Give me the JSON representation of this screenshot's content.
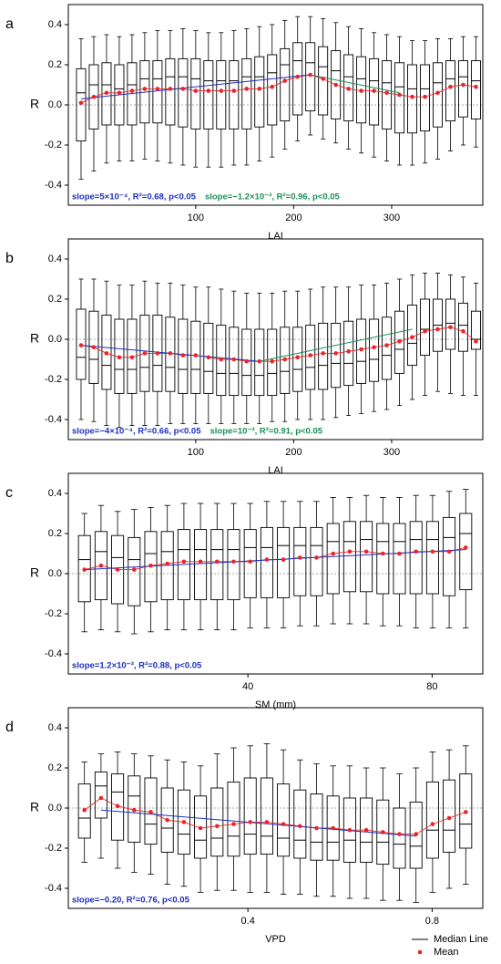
{
  "chart_data": [
    {
      "type": "box",
      "panel": "a",
      "xlabel": "LAI",
      "ylabel": "R",
      "xlim": [
        -30,
        393
      ],
      "ylim": [
        -0.5,
        0.5
      ],
      "xticks": [
        100,
        200,
        300
      ],
      "yticks": [
        -0.4,
        -0.2,
        {
          "value": 0,
          "label": "0.0"
        },
        0.2,
        0.4
      ],
      "zero_line": true,
      "box_color": "#000000",
      "mean_color": "#e8262a",
      "x": [
        -17,
        -4,
        9,
        22,
        35,
        48,
        61,
        74,
        87,
        100,
        113,
        126,
        139,
        152,
        165,
        178,
        191,
        204,
        217,
        230,
        243,
        256,
        269,
        282,
        295,
        308,
        321,
        334,
        347,
        360,
        373,
        386
      ],
      "whislo": [
        -0.37,
        -0.33,
        -0.29,
        -0.28,
        -0.28,
        -0.27,
        -0.28,
        -0.29,
        -0.3,
        -0.31,
        -0.31,
        -0.31,
        -0.3,
        -0.3,
        -0.28,
        -0.26,
        -0.22,
        -0.18,
        -0.15,
        -0.17,
        -0.19,
        -0.22,
        -0.24,
        -0.26,
        -0.28,
        -0.3,
        -0.3,
        -0.29,
        -0.27,
        -0.23,
        -0.2,
        -0.21
      ],
      "q1": [
        -0.18,
        -0.12,
        -0.1,
        -0.1,
        -0.1,
        -0.09,
        -0.09,
        -0.1,
        -0.11,
        -0.12,
        -0.12,
        -0.12,
        -0.12,
        -0.12,
        -0.11,
        -0.1,
        -0.08,
        -0.05,
        -0.03,
        -0.05,
        -0.07,
        -0.08,
        -0.09,
        -0.1,
        -0.12,
        -0.14,
        -0.14,
        -0.13,
        -0.11,
        -0.08,
        -0.06,
        -0.07
      ],
      "med": [
        0.06,
        0.1,
        0.1,
        0.08,
        0.1,
        0.13,
        0.13,
        0.14,
        0.14,
        0.13,
        0.12,
        0.12,
        0.12,
        0.14,
        0.14,
        0.16,
        0.2,
        0.22,
        0.21,
        0.19,
        0.17,
        0.14,
        0.13,
        0.12,
        0.11,
        0.09,
        0.08,
        0.08,
        0.11,
        0.13,
        0.14,
        0.12
      ],
      "q3": [
        0.18,
        0.2,
        0.21,
        0.2,
        0.21,
        0.22,
        0.22,
        0.23,
        0.23,
        0.23,
        0.22,
        0.22,
        0.22,
        0.23,
        0.24,
        0.25,
        0.28,
        0.31,
        0.31,
        0.29,
        0.27,
        0.25,
        0.24,
        0.23,
        0.22,
        0.21,
        0.2,
        0.2,
        0.21,
        0.22,
        0.22,
        0.22
      ],
      "whishi": [
        0.33,
        0.34,
        0.35,
        0.34,
        0.35,
        0.36,
        0.37,
        0.37,
        0.38,
        0.37,
        0.36,
        0.36,
        0.37,
        0.38,
        0.39,
        0.4,
        0.42,
        0.44,
        0.44,
        0.43,
        0.41,
        0.39,
        0.38,
        0.36,
        0.35,
        0.34,
        0.32,
        0.32,
        0.33,
        0.33,
        0.34,
        0.34
      ],
      "mean": [
        0.01,
        0.04,
        0.06,
        0.06,
        0.07,
        0.08,
        0.08,
        0.08,
        0.08,
        0.07,
        0.07,
        0.07,
        0.07,
        0.08,
        0.08,
        0.09,
        0.12,
        0.14,
        0.15,
        0.13,
        0.1,
        0.08,
        0.07,
        0.07,
        0.06,
        0.05,
        0.04,
        0.04,
        0.06,
        0.09,
        0.1,
        0.09
      ],
      "trends": [
        {
          "color": "#1f2fbf",
          "x": [
            -17,
            217
          ],
          "values": [
            0.03,
            0.15
          ],
          "label": "slope=5×10⁻⁴, R²=0.68, p<0.05"
        },
        {
          "color": "#1a8f5a",
          "x": [
            217,
            308
          ],
          "values": [
            0.15,
            0.06
          ],
          "label": "slope=−1.2×10⁻³, R²=0.96, p<0.05"
        }
      ]
    },
    {
      "type": "box",
      "panel": "b",
      "xlabel": "LAI",
      "ylabel": "R",
      "xlim": [
        -30,
        393
      ],
      "ylim": [
        -0.5,
        0.5
      ],
      "xticks": [
        100,
        200,
        300
      ],
      "yticks": [
        -0.4,
        -0.2,
        {
          "value": 0,
          "label": "0.0"
        },
        0.2,
        0.4
      ],
      "zero_line": true,
      "box_color": "#000000",
      "mean_color": "#e8262a",
      "x": [
        -17,
        -4,
        9,
        22,
        35,
        48,
        61,
        74,
        87,
        100,
        113,
        126,
        139,
        152,
        165,
        178,
        191,
        204,
        217,
        230,
        243,
        256,
        269,
        282,
        295,
        308,
        321,
        334,
        347,
        360,
        373,
        386
      ],
      "whislo": [
        -0.4,
        -0.41,
        -0.43,
        -0.44,
        -0.43,
        -0.43,
        -0.43,
        -0.42,
        -0.42,
        -0.42,
        -0.42,
        -0.42,
        -0.42,
        -0.42,
        -0.42,
        -0.41,
        -0.41,
        -0.4,
        -0.4,
        -0.4,
        -0.39,
        -0.38,
        -0.37,
        -0.36,
        -0.35,
        -0.33,
        -0.3,
        -0.28,
        -0.26,
        -0.27,
        -0.28,
        -0.28
      ],
      "q1": [
        -0.2,
        -0.22,
        -0.25,
        -0.27,
        -0.27,
        -0.26,
        -0.26,
        -0.26,
        -0.27,
        -0.27,
        -0.27,
        -0.28,
        -0.28,
        -0.28,
        -0.28,
        -0.28,
        -0.27,
        -0.26,
        -0.25,
        -0.25,
        -0.24,
        -0.23,
        -0.22,
        -0.21,
        -0.2,
        -0.17,
        -0.13,
        -0.08,
        -0.06,
        -0.05,
        -0.06,
        -0.05
      ],
      "med": [
        -0.09,
        -0.1,
        -0.13,
        -0.15,
        -0.15,
        -0.14,
        -0.13,
        -0.14,
        -0.15,
        -0.15,
        -0.16,
        -0.17,
        -0.17,
        -0.18,
        -0.18,
        -0.17,
        -0.16,
        -0.15,
        -0.14,
        -0.13,
        -0.12,
        -0.12,
        -0.11,
        -0.1,
        -0.08,
        -0.05,
        -0.02,
        0.05,
        0.07,
        0.08,
        0.07,
        0.0
      ],
      "q3": [
        0.15,
        0.14,
        0.12,
        0.1,
        0.1,
        0.12,
        0.12,
        0.11,
        0.1,
        0.09,
        0.08,
        0.07,
        0.06,
        0.05,
        0.05,
        0.05,
        0.06,
        0.06,
        0.07,
        0.08,
        0.08,
        0.09,
        0.1,
        0.1,
        0.11,
        0.14,
        0.17,
        0.2,
        0.2,
        0.2,
        0.18,
        0.14
      ],
      "whishi": [
        0.3,
        0.3,
        0.29,
        0.27,
        0.27,
        0.29,
        0.28,
        0.28,
        0.27,
        0.26,
        0.26,
        0.25,
        0.24,
        0.23,
        0.23,
        0.23,
        0.24,
        0.24,
        0.25,
        0.26,
        0.26,
        0.26,
        0.27,
        0.27,
        0.28,
        0.3,
        0.32,
        0.33,
        0.33,
        0.32,
        0.31,
        0.28
      ],
      "mean": [
        -0.03,
        -0.04,
        -0.07,
        -0.09,
        -0.09,
        -0.07,
        -0.07,
        -0.07,
        -0.08,
        -0.08,
        -0.09,
        -0.1,
        -0.1,
        -0.11,
        -0.11,
        -0.11,
        -0.1,
        -0.09,
        -0.08,
        -0.07,
        -0.07,
        -0.06,
        -0.05,
        -0.04,
        -0.03,
        -0.01,
        0.01,
        0.04,
        0.05,
        0.06,
        0.04,
        -0.01
      ],
      "trends": [
        {
          "color": "#1f2fbf",
          "x": [
            -17,
            165
          ],
          "values": [
            -0.03,
            -0.11
          ],
          "label": "slope=−4×10⁻⁴, R²=0.66, p<0.05"
        },
        {
          "color": "#1a8f5a",
          "x": [
            165,
            321
          ],
          "values": [
            -0.11,
            0.05
          ],
          "label": "slope=10⁻³, R²=0.91, p<0.05"
        }
      ]
    },
    {
      "type": "box",
      "panel": "c",
      "xlabel": "SM (mm)",
      "ylabel": "R",
      "xlim": [
        1,
        91
      ],
      "ylim": [
        -0.5,
        0.5
      ],
      "xticks": [
        40,
        80
      ],
      "yticks": [
        -0.4,
        -0.2,
        {
          "value": 0,
          "label": "0.0"
        },
        0.2,
        0.4
      ],
      "zero_line": true,
      "box_color": "#000000",
      "mean_color": "#e8262a",
      "x": [
        4.5,
        8.1,
        11.7,
        15.3,
        18.9,
        22.5,
        26.1,
        29.7,
        33.3,
        36.9,
        40.5,
        44.1,
        47.7,
        51.3,
        54.9,
        58.5,
        62.1,
        65.7,
        69.3,
        72.9,
        76.5,
        80.1,
        83.7,
        87.3
      ],
      "whislo": [
        -0.29,
        -0.28,
        -0.29,
        -0.3,
        -0.29,
        -0.28,
        -0.28,
        -0.28,
        -0.28,
        -0.28,
        -0.27,
        -0.27,
        -0.27,
        -0.26,
        -0.26,
        -0.25,
        -0.25,
        -0.25,
        -0.26,
        -0.26,
        -0.27,
        -0.27,
        -0.27,
        -0.27
      ],
      "q1": [
        -0.14,
        -0.13,
        -0.15,
        -0.16,
        -0.14,
        -0.13,
        -0.13,
        -0.13,
        -0.13,
        -0.13,
        -0.12,
        -0.12,
        -0.12,
        -0.11,
        -0.11,
        -0.1,
        -0.09,
        -0.09,
        -0.1,
        -0.1,
        -0.1,
        -0.1,
        -0.11,
        -0.08
      ],
      "med": [
        0.07,
        0.11,
        0.08,
        0.07,
        0.1,
        0.11,
        0.12,
        0.12,
        0.12,
        0.12,
        0.13,
        0.13,
        0.14,
        0.14,
        0.14,
        0.16,
        0.16,
        0.17,
        0.16,
        0.16,
        0.17,
        0.17,
        0.18,
        0.2
      ],
      "q3": [
        0.19,
        0.21,
        0.19,
        0.18,
        0.21,
        0.21,
        0.22,
        0.22,
        0.22,
        0.22,
        0.22,
        0.23,
        0.23,
        0.23,
        0.23,
        0.25,
        0.26,
        0.26,
        0.25,
        0.25,
        0.26,
        0.26,
        0.28,
        0.3
      ],
      "whishi": [
        0.3,
        0.34,
        0.31,
        0.32,
        0.33,
        0.34,
        0.35,
        0.35,
        0.35,
        0.35,
        0.35,
        0.36,
        0.36,
        0.36,
        0.36,
        0.38,
        0.38,
        0.39,
        0.38,
        0.38,
        0.39,
        0.39,
        0.41,
        0.42
      ],
      "mean": [
        0.02,
        0.04,
        0.02,
        0.02,
        0.04,
        0.05,
        0.06,
        0.06,
        0.06,
        0.06,
        0.06,
        0.07,
        0.07,
        0.08,
        0.08,
        0.1,
        0.11,
        0.11,
        0.1,
        0.1,
        0.11,
        0.11,
        0.11,
        0.13
      ],
      "trends": [
        {
          "color": "#1f2fbf",
          "x": [
            4.5,
            87.3
          ],
          "values": [
            0.02,
            0.12
          ],
          "label": "slope=1.2×10⁻³, R²=0.88, p<0.05"
        }
      ]
    },
    {
      "type": "box",
      "panel": "d",
      "xlabel": "VPD",
      "ylabel": "R",
      "xlim": [
        0.01,
        0.91
      ],
      "ylim": [
        -0.5,
        0.5
      ],
      "xticks": [
        0.4,
        0.8
      ],
      "yticks": [
        -0.4,
        -0.2,
        {
          "value": 0,
          "label": "0.0"
        },
        0.2,
        0.4
      ],
      "zero_line": true,
      "box_color": "#000000",
      "mean_color": "#e8262a",
      "x": [
        0.045,
        0.081,
        0.117,
        0.153,
        0.189,
        0.225,
        0.261,
        0.297,
        0.333,
        0.369,
        0.405,
        0.441,
        0.477,
        0.513,
        0.549,
        0.585,
        0.621,
        0.657,
        0.693,
        0.729,
        0.765,
        0.801,
        0.837,
        0.873
      ],
      "whislo": [
        -0.27,
        -0.25,
        -0.3,
        -0.32,
        -0.33,
        -0.38,
        -0.39,
        -0.42,
        -0.41,
        -0.41,
        -0.42,
        -0.42,
        -0.43,
        -0.43,
        -0.44,
        -0.44,
        -0.45,
        -0.45,
        -0.46,
        -0.46,
        -0.47,
        -0.42,
        -0.4,
        -0.38
      ],
      "q1": [
        -0.15,
        -0.05,
        -0.16,
        -0.17,
        -0.18,
        -0.22,
        -0.23,
        -0.25,
        -0.24,
        -0.24,
        -0.23,
        -0.23,
        -0.24,
        -0.25,
        -0.26,
        -0.26,
        -0.27,
        -0.27,
        -0.28,
        -0.3,
        -0.3,
        -0.25,
        -0.22,
        -0.2
      ],
      "med": [
        -0.05,
        0.11,
        0.08,
        0.06,
        -0.08,
        -0.1,
        -0.13,
        -0.16,
        -0.15,
        -0.14,
        -0.13,
        -0.14,
        -0.15,
        -0.16,
        -0.17,
        -0.17,
        -0.16,
        -0.17,
        -0.17,
        -0.18,
        -0.19,
        -0.11,
        -0.11,
        -0.08
      ],
      "q3": [
        0.12,
        0.18,
        0.17,
        0.16,
        0.15,
        0.1,
        0.09,
        0.06,
        0.1,
        0.13,
        0.15,
        0.15,
        0.12,
        0.09,
        0.07,
        0.06,
        0.05,
        0.05,
        0.04,
        0.0,
        0.03,
        0.13,
        0.14,
        0.17
      ],
      "whishi": [
        0.23,
        0.27,
        0.28,
        0.27,
        0.26,
        0.24,
        0.23,
        0.21,
        0.27,
        0.3,
        0.31,
        0.32,
        0.29,
        0.24,
        0.22,
        0.21,
        0.21,
        0.2,
        0.2,
        0.17,
        0.2,
        0.28,
        0.29,
        0.31
      ],
      "mean": [
        -0.01,
        0.05,
        0.01,
        -0.01,
        -0.02,
        -0.06,
        -0.07,
        -0.1,
        -0.09,
        -0.08,
        -0.07,
        -0.07,
        -0.08,
        -0.09,
        -0.1,
        -0.1,
        -0.11,
        -0.11,
        -0.12,
        -0.13,
        -0.13,
        -0.08,
        -0.05,
        -0.02
      ],
      "trends": [
        {
          "color": "#1f2fbf",
          "x": [
            0.081,
            0.765
          ],
          "values": [
            -0.01,
            -0.14
          ],
          "label": "slope=−0.20, R²=0.76, p<0.05"
        }
      ]
    }
  ],
  "legend": [
    "Median Line",
    "Mean"
  ]
}
